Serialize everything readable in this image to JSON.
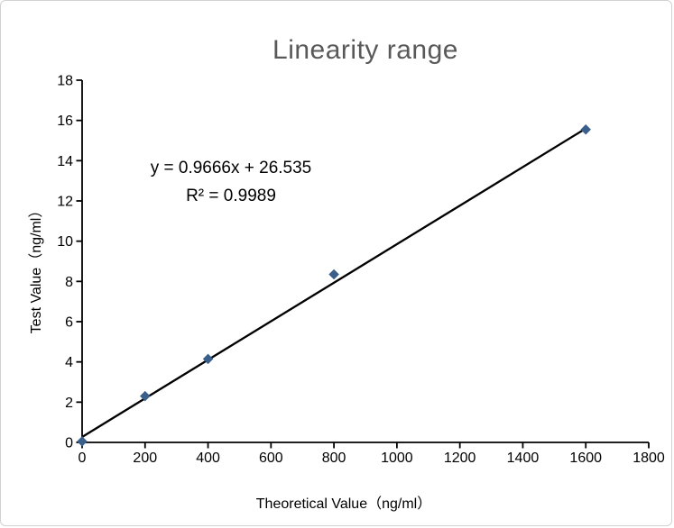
{
  "window": {
    "background": "#ffffff",
    "border_color": "#d2d2d2"
  },
  "chart_data": {
    "type": "scatter",
    "title": "Linearity range",
    "title_color": "#595959",
    "xlabel": "Theoretical Value（ng/ml）",
    "ylabel": "Test Value（ng/ml）",
    "xlim": [
      0,
      1800
    ],
    "ylim": [
      0,
      18
    ],
    "x_ticks": [
      0,
      200,
      400,
      600,
      800,
      1000,
      1200,
      1400,
      1600,
      1800
    ],
    "y_ticks": [
      0,
      2,
      4,
      6,
      8,
      10,
      12,
      14,
      16,
      18
    ],
    "grid": false,
    "legend": "none",
    "points": [
      {
        "x": 0,
        "y": 0.05
      },
      {
        "x": 200,
        "y": 2.3
      },
      {
        "x": 400,
        "y": 4.15
      },
      {
        "x": 800,
        "y": 8.35
      },
      {
        "x": 1600,
        "y": 15.55
      }
    ],
    "marker": {
      "shape": "diamond",
      "color": "#3A5F8B",
      "size": 11.5
    },
    "trendline": {
      "x1": 0,
      "y1": 0.27,
      "x2": 1600,
      "y2": 15.6,
      "color": "#000000",
      "width": 2.3
    },
    "annotation": {
      "line1": "y = 0.9666x + 26.535",
      "line2": "R² = 0.9989"
    },
    "axis_color": "#000000"
  }
}
